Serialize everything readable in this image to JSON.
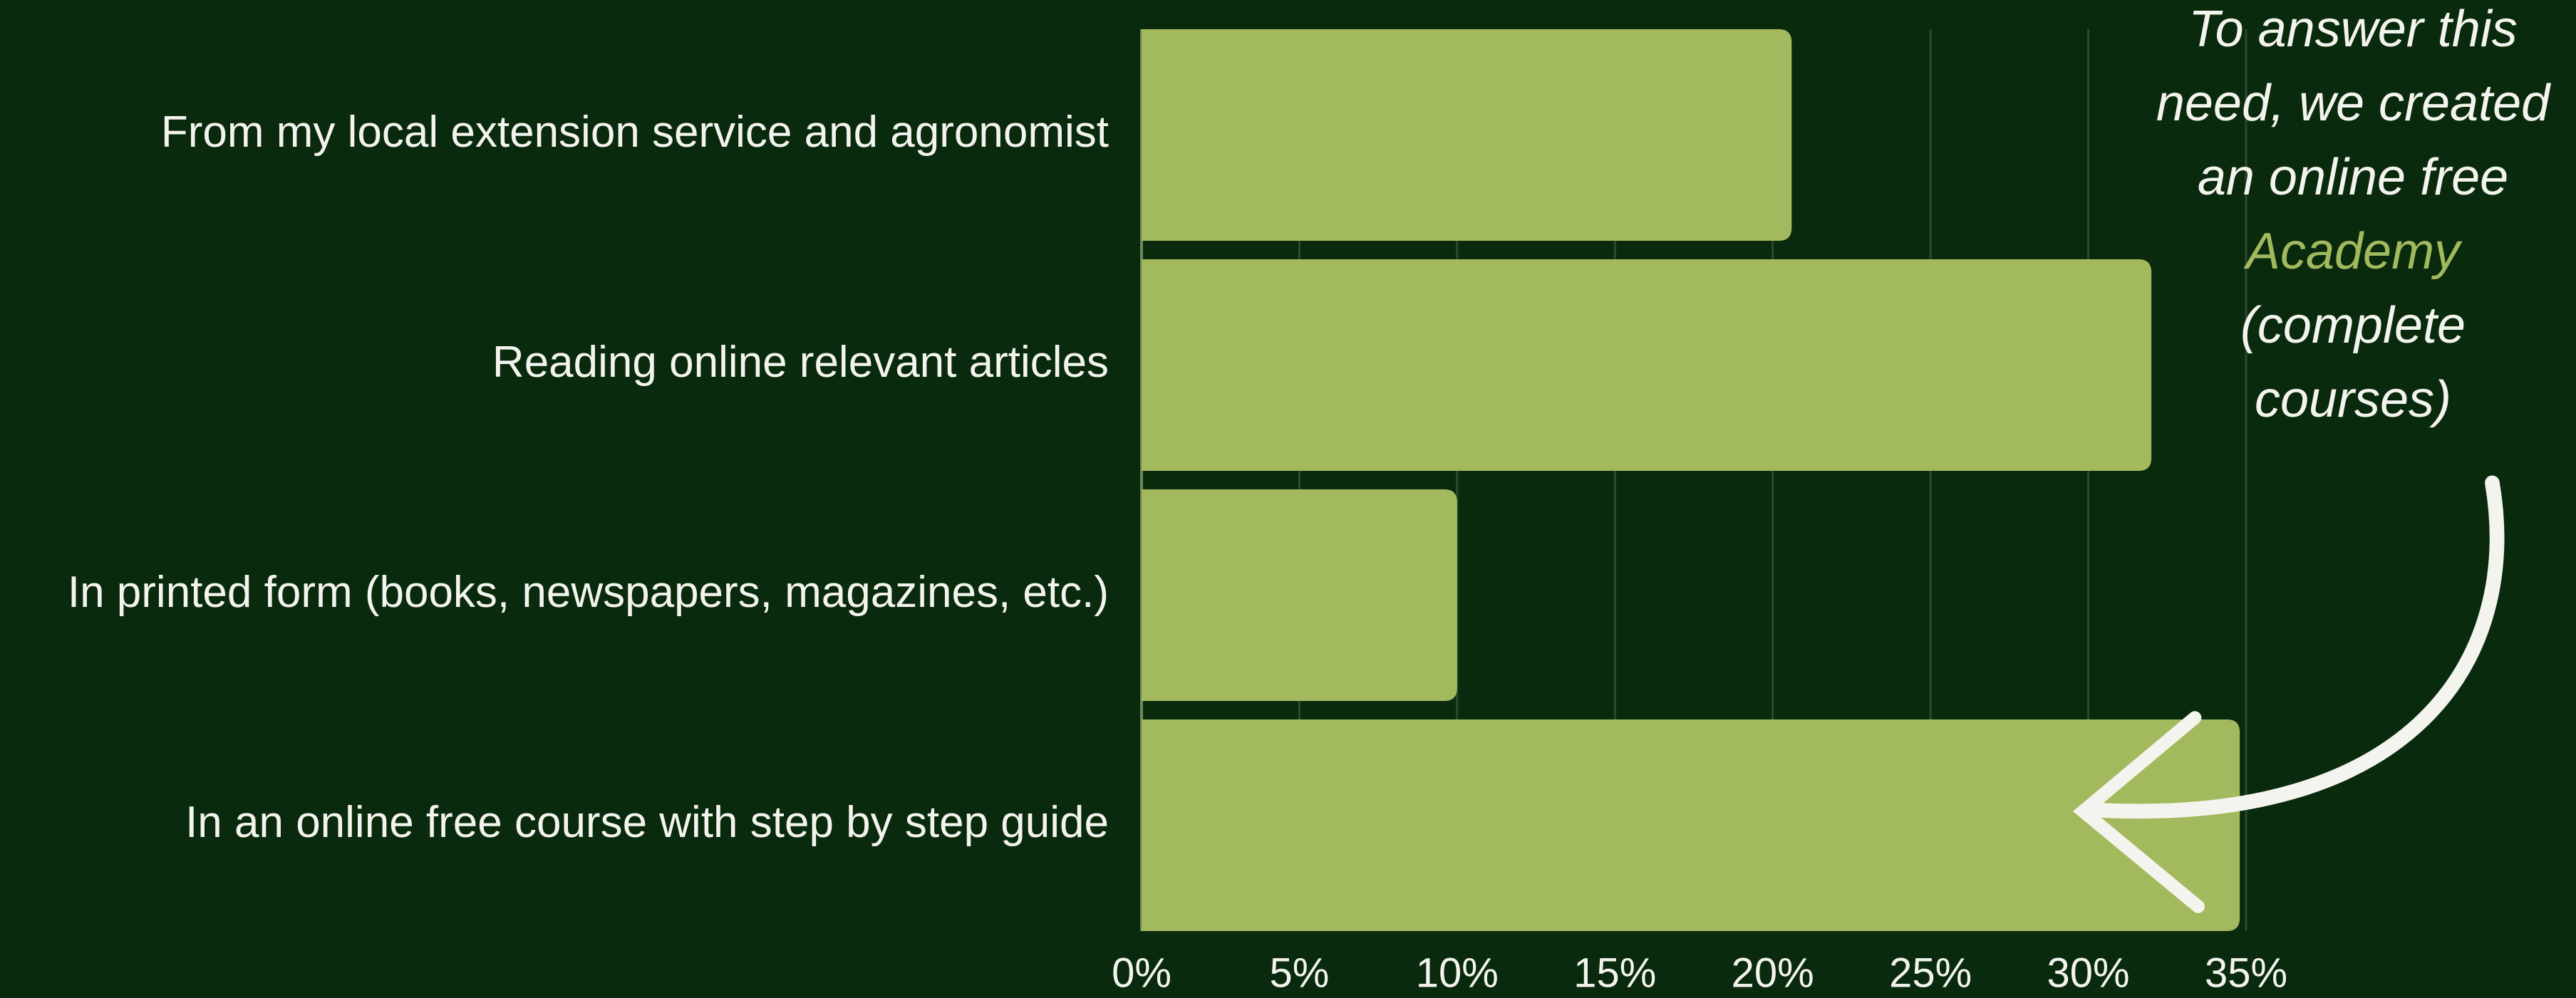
{
  "chart_data": {
    "type": "bar",
    "orientation": "horizontal",
    "categories": [
      "From my local extension service and agronomist",
      "Reading online relevant articles",
      "In printed form (books, newspapers, magazines, etc.)",
      "In an online free course with step by step guide"
    ],
    "values": [
      20.6,
      32,
      10,
      34.8
    ],
    "color": "#a3b95e",
    "xlim": [
      0,
      35
    ],
    "xticks": [
      {
        "value": 0,
        "label": "0%"
      },
      {
        "value": 5,
        "label": "5%"
      },
      {
        "value": 10,
        "label": "10%"
      },
      {
        "value": 15,
        "label": "15%"
      },
      {
        "value": 20,
        "label": "20%"
      },
      {
        "value": 25,
        "label": "25%"
      },
      {
        "value": 30,
        "label": "30%"
      },
      {
        "value": 35,
        "label": "35%"
      }
    ],
    "grid": true,
    "annotation": [
      {
        "text": "To answer this"
      },
      {
        "text": "need, we created"
      },
      {
        "text": "an online free"
      },
      {
        "text": "Academy",
        "color": "#a3b95e"
      },
      {
        "text": "(complete"
      },
      {
        "text": "courses)"
      }
    ]
  }
}
